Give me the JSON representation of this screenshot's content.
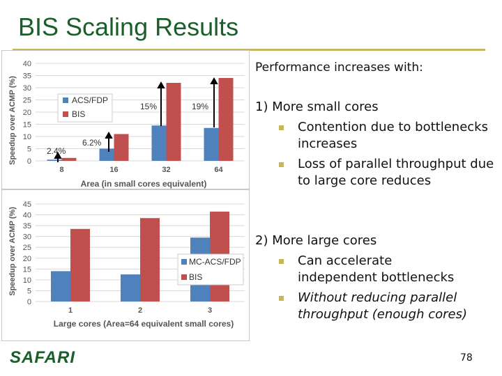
{
  "slide": {
    "title": "BIS Scaling Results",
    "page_number": "78",
    "logo": "SAFARI"
  },
  "text": {
    "intro": "Performance increases with:",
    "point1": "1) More small cores",
    "point1_b1_l1": "Contention due to bottlenecks",
    "point1_b1_l2": "increases",
    "point1_b2_l1": "Loss of parallel throughput due",
    "point1_b2_l2": "to large core reduces",
    "point2": "2) More large cores",
    "point2_b1_l1": "Can accelerate",
    "point2_b1_l2": "independent bottlenecks",
    "point2_b2_l1": "Without reducing parallel",
    "point2_b2_l2": "throughput (enough cores)"
  },
  "colors": {
    "title": "#1a5e2a",
    "accent": "#c8b560",
    "series_blue": "#4f81bd",
    "series_red": "#c0504d"
  },
  "chart_data": [
    {
      "type": "bar",
      "categories": [
        "8",
        "16",
        "32",
        "64"
      ],
      "series": [
        {
          "name": "ACS/FDP",
          "values": [
            0.5,
            5,
            14.5,
            13.5
          ]
        },
        {
          "name": "BIS",
          "values": [
            1.2,
            11,
            32,
            34
          ]
        }
      ],
      "xlabel": "Area (in small cores equivalent)",
      "ylabel": "Speedup over ACMP (%)",
      "ylim": [
        0,
        40
      ],
      "yticks": [
        0,
        5,
        10,
        15,
        20,
        25,
        30,
        35,
        40
      ],
      "legend": "upper-left",
      "grid": true,
      "annotations": [
        "2.4%",
        "6.2%",
        "15%",
        "19%"
      ]
    },
    {
      "type": "bar",
      "categories": [
        "1",
        "2",
        "3"
      ],
      "series": [
        {
          "name": "MC-ACS/FDP",
          "values": [
            14,
            12.5,
            29.5
          ]
        },
        {
          "name": "BIS",
          "values": [
            33.5,
            38.5,
            41.5
          ]
        }
      ],
      "xlabel": "Large cores (Area=64 equivalent small cores)",
      "ylabel": "Speedup over ACMP (%)",
      "ylim": [
        0,
        45
      ],
      "yticks": [
        0,
        5,
        10,
        15,
        20,
        25,
        30,
        35,
        40,
        45
      ],
      "legend": "center-right",
      "grid": true
    }
  ]
}
